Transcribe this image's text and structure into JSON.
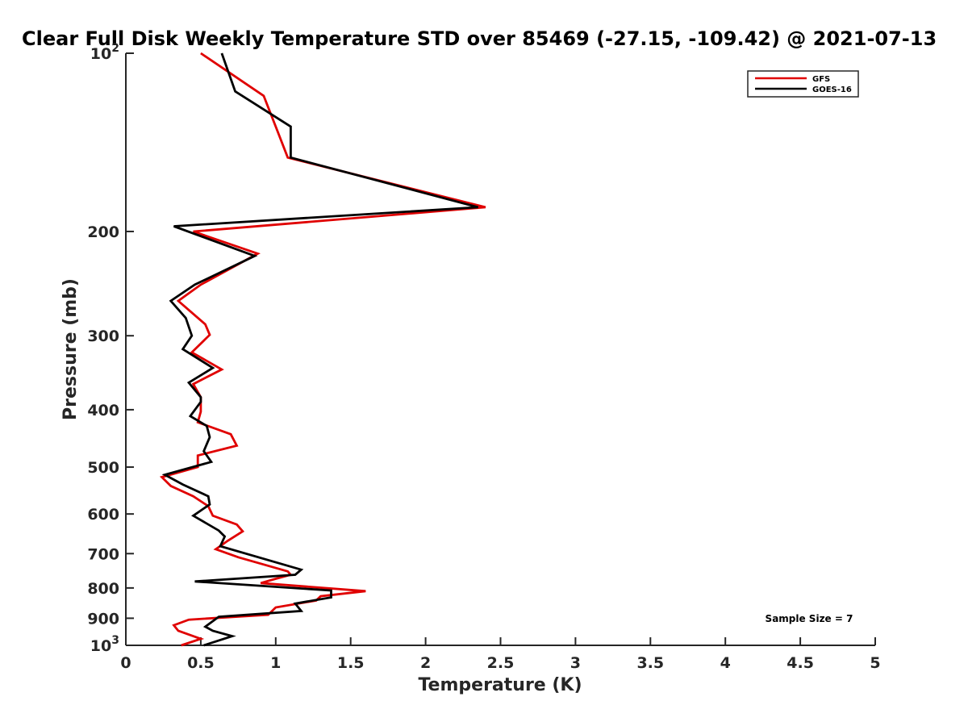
{
  "chart_data": {
    "type": "line",
    "title": "Clear Full Disk Weekly Temperature STD over 85469 (-27.15, -109.42) @ 2021-07-13",
    "xlabel": "Temperature (K)",
    "ylabel": "Pressure (mb)",
    "xlim": [
      0,
      5
    ],
    "ylim": [
      100,
      1000
    ],
    "y_scale": "log",
    "y_reversed": true,
    "x_ticks": [
      "0",
      "0.5",
      "1",
      "1.5",
      "2",
      "2.5",
      "3",
      "3.5",
      "4",
      "4.5",
      "5"
    ],
    "x_tick_values": [
      0,
      0.5,
      1,
      1.5,
      2,
      2.5,
      3,
      3.5,
      4,
      4.5,
      5
    ],
    "y_ticks": [
      {
        "value": 100,
        "label": "10",
        "sup": "2"
      },
      {
        "value": 200,
        "label": "200"
      },
      {
        "value": 300,
        "label": "300"
      },
      {
        "value": 400,
        "label": "400"
      },
      {
        "value": 500,
        "label": "500"
      },
      {
        "value": 600,
        "label": "600"
      },
      {
        "value": 700,
        "label": "700"
      },
      {
        "value": 800,
        "label": "800"
      },
      {
        "value": 900,
        "label": "900"
      },
      {
        "value": 1000,
        "label": "10",
        "sup": "3"
      }
    ],
    "legend": {
      "placement": "top-right"
    },
    "annotation": "Sample Size = 7",
    "series": [
      {
        "name": "GFS",
        "color": "#e00000",
        "points": [
          [
            0.5,
            100
          ],
          [
            0.92,
            118
          ],
          [
            1.0,
            133
          ],
          [
            1.08,
            150
          ],
          [
            2.4,
            182
          ],
          [
            0.45,
            200
          ],
          [
            0.88,
            218
          ],
          [
            0.5,
            246
          ],
          [
            0.35,
            262
          ],
          [
            0.53,
            287
          ],
          [
            0.56,
            299
          ],
          [
            0.44,
            320
          ],
          [
            0.64,
            342
          ],
          [
            0.45,
            362
          ],
          [
            0.5,
            381
          ],
          [
            0.5,
            403
          ],
          [
            0.48,
            420
          ],
          [
            0.7,
            440
          ],
          [
            0.74,
            460
          ],
          [
            0.48,
            478
          ],
          [
            0.48,
            500
          ],
          [
            0.24,
            520
          ],
          [
            0.3,
            538
          ],
          [
            0.45,
            560
          ],
          [
            0.55,
            582
          ],
          [
            0.58,
            604
          ],
          [
            0.74,
            625
          ],
          [
            0.78,
            642
          ],
          [
            0.68,
            666
          ],
          [
            0.6,
            688
          ],
          [
            0.75,
            710
          ],
          [
            1.08,
            750
          ],
          [
            1.1,
            760
          ],
          [
            1.0,
            772
          ],
          [
            0.9,
            785
          ],
          [
            1.6,
            810
          ],
          [
            1.3,
            826
          ],
          [
            1.27,
            840
          ],
          [
            1.0,
            863
          ],
          [
            0.95,
            888
          ],
          [
            0.42,
            905
          ],
          [
            0.32,
            925
          ],
          [
            0.35,
            945
          ],
          [
            0.5,
            975
          ],
          [
            0.37,
            1000
          ]
        ]
      },
      {
        "name": "GOES-16",
        "color": "#000000",
        "points": [
          [
            0.64,
            100
          ],
          [
            0.73,
            116
          ],
          [
            1.1,
            133
          ],
          [
            1.1,
            150
          ],
          [
            2.35,
            182
          ],
          [
            0.32,
            196
          ],
          [
            0.86,
            220
          ],
          [
            0.46,
            246
          ],
          [
            0.3,
            262
          ],
          [
            0.4,
            280
          ],
          [
            0.44,
            300
          ],
          [
            0.38,
            316
          ],
          [
            0.58,
            340
          ],
          [
            0.42,
            360
          ],
          [
            0.5,
            381
          ],
          [
            0.5,
            388
          ],
          [
            0.43,
            410
          ],
          [
            0.54,
            426
          ],
          [
            0.56,
            445
          ],
          [
            0.52,
            470
          ],
          [
            0.57,
            490
          ],
          [
            0.26,
            515
          ],
          [
            0.38,
            535
          ],
          [
            0.55,
            560
          ],
          [
            0.56,
            578
          ],
          [
            0.45,
            604
          ],
          [
            0.62,
            640
          ],
          [
            0.66,
            655
          ],
          [
            0.63,
            680
          ],
          [
            1.17,
            745
          ],
          [
            1.13,
            760
          ],
          [
            0.46,
            780
          ],
          [
            1.37,
            808
          ],
          [
            1.37,
            830
          ],
          [
            1.13,
            850
          ],
          [
            1.17,
            875
          ],
          [
            0.62,
            895
          ],
          [
            0.53,
            930
          ],
          [
            0.58,
            945
          ],
          [
            0.71,
            965
          ],
          [
            0.52,
            1000
          ]
        ]
      }
    ]
  }
}
